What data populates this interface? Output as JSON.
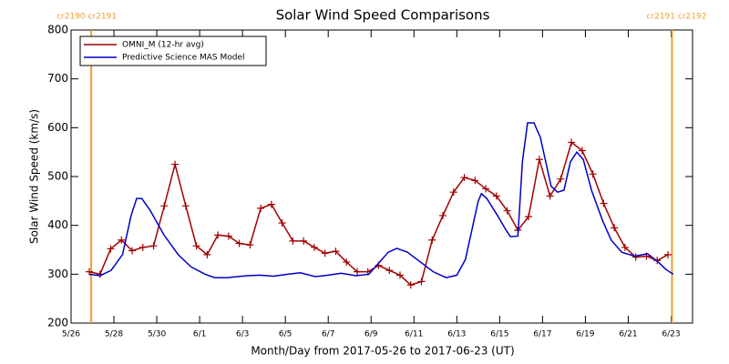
{
  "chart_data": {
    "type": "line",
    "title": "Solar Wind Speed Comparisons",
    "xlabel": "Month/Day from 2017-05-26 to 2017-06-23 (UT)",
    "ylabel": "Solar Wind Speed (km/s)",
    "xlim": [
      0,
      29
    ],
    "ylim": [
      200,
      800
    ],
    "yticks": [
      200,
      300,
      400,
      500,
      600,
      700,
      800
    ],
    "xticks": [
      {
        "value": 0,
        "label": "5/26"
      },
      {
        "value": 2,
        "label": "5/28"
      },
      {
        "value": 4,
        "label": "5/30"
      },
      {
        "value": 6,
        "label": "6/1"
      },
      {
        "value": 8,
        "label": "6/3"
      },
      {
        "value": 10,
        "label": "6/5"
      },
      {
        "value": 12,
        "label": "6/7"
      },
      {
        "value": 14,
        "label": "6/9"
      },
      {
        "value": 16,
        "label": "6/11"
      },
      {
        "value": 18,
        "label": "6/13"
      },
      {
        "value": 20,
        "label": "6/15"
      },
      {
        "value": 22,
        "label": "6/17"
      },
      {
        "value": 24,
        "label": "6/19"
      },
      {
        "value": 26,
        "label": "6/21"
      },
      {
        "value": 28,
        "label": "6/23"
      }
    ],
    "legend": "upper left",
    "annotations": [
      {
        "x": 0.94,
        "label": "cr2190 cr2191",
        "color": "#f0a030"
      },
      {
        "x": 28.04,
        "label": "cr2191 cr2192",
        "color": "#f0a030"
      }
    ],
    "series": [
      {
        "name": "OMNI_M (12-hr avg)",
        "color": "#a00000",
        "marker": "+",
        "x": [
          0.85,
          1.35,
          1.85,
          2.35,
          2.85,
          3.35,
          3.85,
          4.35,
          4.85,
          5.35,
          5.85,
          6.35,
          6.85,
          7.35,
          7.85,
          8.35,
          8.85,
          9.35,
          9.85,
          10.35,
          10.85,
          11.35,
          11.85,
          12.35,
          12.85,
          13.35,
          13.85,
          14.35,
          14.85,
          15.35,
          15.85,
          16.35,
          16.85,
          17.35,
          17.85,
          18.35,
          18.85,
          19.35,
          19.85,
          20.35,
          20.85,
          21.35,
          21.85,
          22.35,
          22.85,
          23.35,
          23.85,
          24.35,
          24.85,
          25.35,
          25.85,
          26.35,
          26.85,
          27.35,
          27.85
        ],
        "values": [
          305,
          300,
          352,
          370,
          348,
          355,
          358,
          440,
          525,
          440,
          358,
          340,
          380,
          378,
          363,
          360,
          435,
          443,
          405,
          368,
          368,
          355,
          343,
          347,
          325,
          305,
          305,
          318,
          308,
          298,
          278,
          285,
          370,
          420,
          468,
          498,
          492,
          475,
          460,
          430,
          390,
          418,
          535,
          460,
          495,
          570,
          553,
          505,
          445,
          395,
          355,
          335,
          337,
          328,
          340
        ]
      },
      {
        "name": "Predictive Science MAS Model",
        "color": "#0000c8",
        "x": [
          0.85,
          1.36,
          1.87,
          2.4,
          2.8,
          3.06,
          3.3,
          3.7,
          4.34,
          5.0,
          5.6,
          6.25,
          6.7,
          7.3,
          8.2,
          8.8,
          9.45,
          10.1,
          10.7,
          11.4,
          12.0,
          12.6,
          13.3,
          13.9,
          14.3,
          14.8,
          15.2,
          15.7,
          16.3,
          16.9,
          17.5,
          18.0,
          18.4,
          18.7,
          19.0,
          19.15,
          19.4,
          19.9,
          20.3,
          20.5,
          20.85,
          21.06,
          21.3,
          21.6,
          21.9,
          22.2,
          22.4,
          22.7,
          23.0,
          23.3,
          23.6,
          23.9,
          24.3,
          24.8,
          25.2,
          25.7,
          26.3,
          26.9,
          27.4,
          27.75,
          28.1
        ],
        "values": [
          300,
          297,
          308,
          340,
          420,
          455,
          455,
          430,
          380,
          340,
          315,
          300,
          293,
          293,
          297,
          298,
          296,
          300,
          303,
          295,
          298,
          302,
          297,
          300,
          320,
          345,
          353,
          345,
          325,
          305,
          293,
          298,
          330,
          390,
          450,
          465,
          455,
          420,
          390,
          377,
          378,
          530,
          610,
          610,
          580,
          520,
          480,
          468,
          472,
          530,
          550,
          535,
          470,
          410,
          370,
          345,
          337,
          342,
          325,
          310,
          300
        ]
      }
    ]
  }
}
